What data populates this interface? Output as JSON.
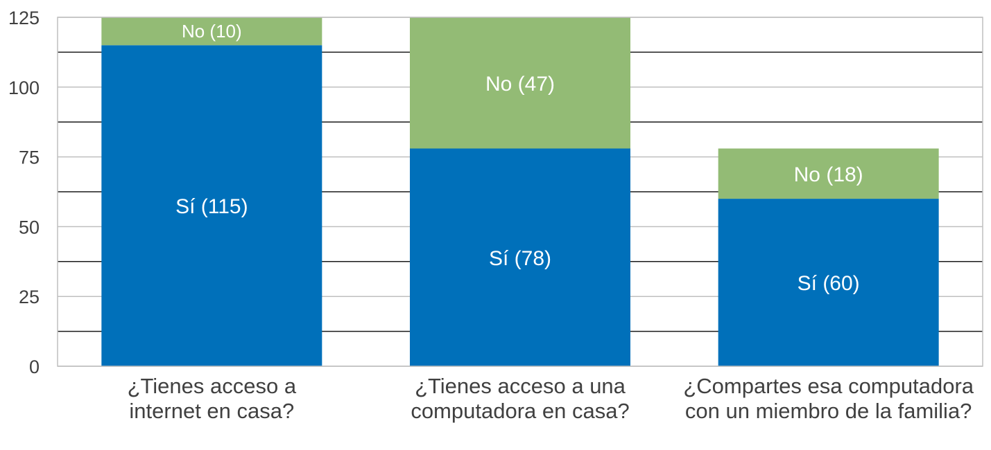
{
  "chart_data": {
    "type": "bar",
    "stacked": true,
    "categories": [
      [
        "¿Tienes acceso a",
        "internet en casa?"
      ],
      [
        "¿Tienes acceso a una",
        "computadora en casa?"
      ],
      [
        "¿Compartes esa computadora",
        "con un miembro de la familia?"
      ]
    ],
    "series": [
      {
        "key": "si",
        "values": [
          115,
          78,
          60
        ],
        "labels": [
          "Sí (115)",
          "Sí (78)",
          "Sí (60)"
        ],
        "color": "#0070BA"
      },
      {
        "key": "no",
        "values": [
          10,
          47,
          18
        ],
        "labels": [
          "No (10)",
          "No (47)",
          "No (18)"
        ],
        "color": "#93BB75"
      }
    ],
    "ylim": [
      0,
      125
    ],
    "yticks": [
      0,
      25,
      50,
      75,
      100,
      125
    ],
    "grid": true,
    "title": "",
    "xlabel": "",
    "ylabel": ""
  }
}
